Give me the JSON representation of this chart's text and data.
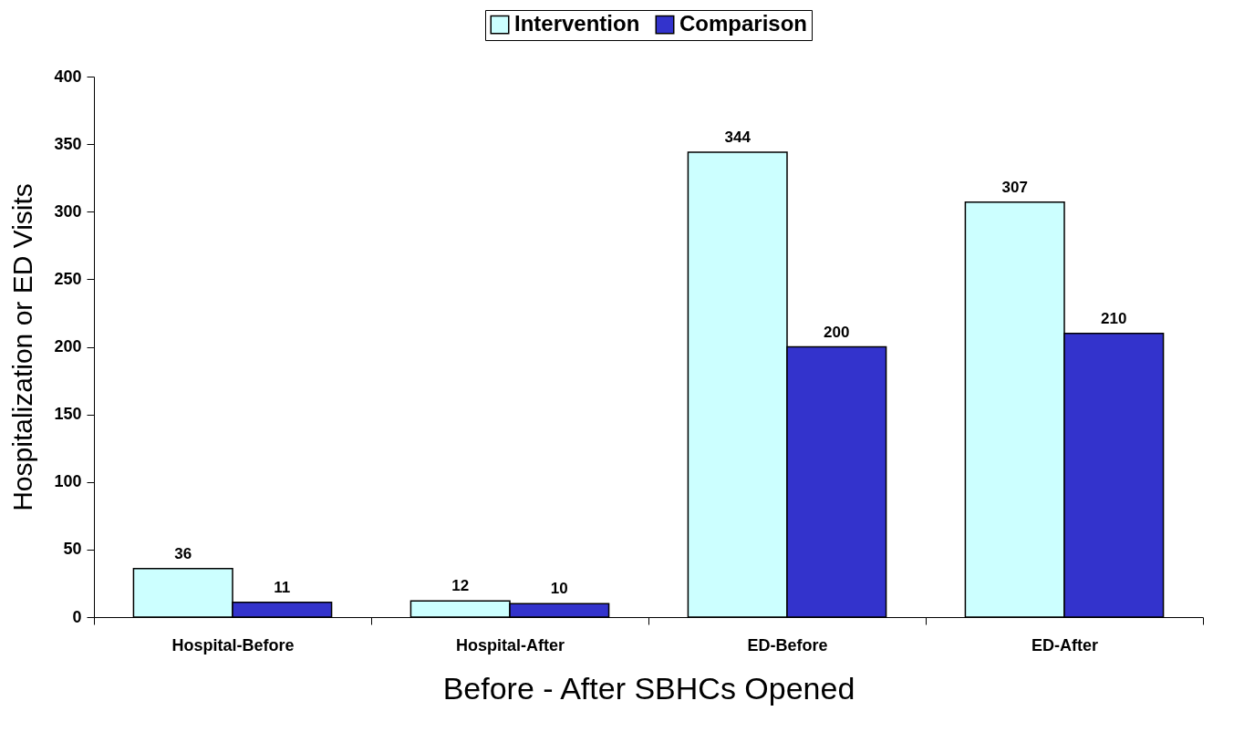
{
  "chart_data": {
    "type": "bar",
    "xlabel": "Before - After SBHCs Opened",
    "ylabel": "Hospitalization or ED Visits",
    "categories": [
      "Hospital-Before",
      "Hospital-After",
      "ED-Before",
      "ED-After"
    ],
    "series": [
      {
        "name": "Intervention",
        "color": "#ccffff",
        "values": [
          36,
          12,
          344,
          307
        ]
      },
      {
        "name": "Comparison",
        "color": "#3333cc",
        "values": [
          11,
          10,
          200,
          210
        ]
      }
    ],
    "ylim": [
      0,
      400
    ],
    "yticks": [
      0,
      50,
      100,
      150,
      200,
      250,
      300,
      350,
      400
    ],
    "grid": false,
    "legend": "top",
    "data_labels": true
  }
}
